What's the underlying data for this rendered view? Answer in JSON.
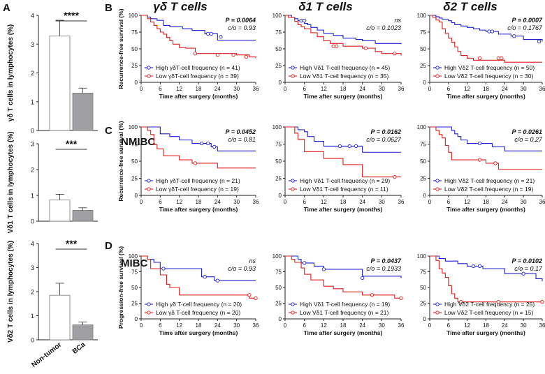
{
  "panel_letters": {
    "a": "A",
    "b": "B",
    "c": "C",
    "d": "D"
  },
  "column_titles": [
    "γδ T cells",
    "δ1 T cells",
    "δ2 T cells"
  ],
  "row_labels": {
    "c": "NMIBC",
    "d": "MIBC"
  },
  "colors": {
    "high": "#1f1fd6",
    "low": "#e01b1b",
    "bar_bca": "#a0a0a4",
    "bar_nontumor": "#ffffff",
    "axis": "#222222"
  },
  "chart_data": [
    {
      "type": "bar",
      "title": "",
      "ylabel": "γδ T cells in lymphocytes (%)",
      "ylim": [
        0,
        4
      ],
      "yticks": [
        0,
        1,
        2,
        3,
        4
      ],
      "categories": [
        "Non-tumor",
        "BCa"
      ],
      "values": [
        3.28,
        1.3
      ],
      "errors": [
        0.55,
        0.17
      ],
      "significance": "****"
    },
    {
      "type": "bar",
      "title": "",
      "ylabel": "Vδ1 T cells in lymphocytes (%)",
      "ylim": [
        0,
        3
      ],
      "yticks": [
        0,
        1,
        2,
        3
      ],
      "categories": [
        "Non-tumor",
        "BCa"
      ],
      "values": [
        0.82,
        0.42
      ],
      "errors": [
        0.22,
        0.1
      ],
      "significance": "***"
    },
    {
      "type": "bar",
      "title": "",
      "ylabel": "Vδ2 T cells in lymphocytes (%)",
      "ylim": [
        0,
        4
      ],
      "yticks": [
        0,
        1,
        2,
        3,
        4
      ],
      "categories": [
        "Non-tumor",
        "BCa"
      ],
      "values": [
        1.85,
        0.62
      ],
      "errors": [
        0.5,
        0.12
      ],
      "significance": "***"
    },
    {
      "type": "line",
      "panel": "B",
      "ylabel": "Recurrence-free survival (%)",
      "xlabel": "Time after surgery (months)",
      "xlim": [
        0,
        36
      ],
      "ylim": [
        0,
        100
      ],
      "xticks": [
        0,
        6,
        12,
        18,
        24,
        30,
        36
      ],
      "yticks": [
        0,
        25,
        50,
        75,
        100
      ],
      "stats": {
        "p": "P = 0.0064",
        "co": "c/o = 0.93",
        "p_bold": true
      },
      "series": [
        {
          "name": "High γδT-cell frequency (n = 41)",
          "key": "high",
          "x": [
            0,
            2,
            3,
            5,
            7,
            9,
            13,
            16,
            20,
            24,
            36
          ],
          "y": [
            100,
            97.5,
            95,
            92.5,
            85,
            83,
            80,
            77.5,
            72.5,
            63,
            63
          ],
          "censor_x": [
            21,
            22,
            25
          ],
          "censor_y": [
            72.5,
            72.5,
            68
          ]
        },
        {
          "name": "Low γδT-cell frequency (n = 39)",
          "key": "low",
          "x": [
            0,
            2,
            3,
            4,
            5,
            6,
            7,
            8,
            9,
            10,
            12,
            14,
            17,
            30,
            34,
            36
          ],
          "y": [
            100,
            95,
            90,
            85,
            80,
            75,
            72,
            67,
            62,
            57,
            52,
            51,
            43,
            41,
            38,
            36
          ],
          "censor_x": [
            17,
            24,
            29,
            33
          ],
          "censor_y": [
            43,
            41,
            41,
            38
          ]
        }
      ]
    },
    {
      "type": "line",
      "panel": "B",
      "ylabel": "",
      "xlabel": "Time after surgery (months)",
      "xlim": [
        0,
        36
      ],
      "ylim": [
        0,
        100
      ],
      "xticks": [
        0,
        6,
        12,
        18,
        24,
        30,
        36
      ],
      "yticks": [
        0,
        25,
        50,
        75,
        100
      ],
      "stats": {
        "p": "ns",
        "co": "c/o = 0.1023",
        "p_bold": false
      },
      "series": [
        {
          "name": "High Vδ1 T-cell frequency (n = 45)",
          "key": "high",
          "x": [
            0,
            2,
            3,
            4,
            6,
            7,
            8,
            10,
            12,
            15,
            18,
            22,
            24,
            28,
            36
          ],
          "y": [
            100,
            97,
            95,
            92,
            88,
            86,
            82,
            78,
            73,
            70,
            66,
            64,
            62,
            58,
            57
          ],
          "censor_x": [
            5,
            6
          ],
          "censor_y": [
            92,
            92
          ]
        },
        {
          "name": "Low Vδ1 T-cell frequency (n = 35)",
          "key": "low",
          "x": [
            0,
            1,
            3,
            4,
            5,
            6,
            8,
            10,
            12,
            14,
            18,
            24,
            28,
            30,
            36
          ],
          "y": [
            100,
            97,
            91,
            86,
            83,
            80,
            74,
            68,
            62,
            58,
            54,
            51,
            46,
            43,
            40
          ],
          "censor_x": [
            15,
            16,
            25,
            34
          ],
          "censor_y": [
            54,
            54,
            51,
            43
          ]
        }
      ]
    },
    {
      "type": "line",
      "panel": "B",
      "ylabel": "",
      "xlabel": "Time after surgery (months)",
      "xlim": [
        0,
        36
      ],
      "ylim": [
        0,
        100
      ],
      "xticks": [
        0,
        6,
        12,
        18,
        24,
        30,
        36
      ],
      "yticks": [
        0,
        25,
        50,
        75,
        100
      ],
      "stats": {
        "p": "P = 0.0007",
        "co": "c/o = 0.1767",
        "p_bold": true
      },
      "series": [
        {
          "name": "High Vδ2 T-cell frequency (n = 50)",
          "key": "high",
          "x": [
            0,
            2,
            3,
            4,
            6,
            7,
            8,
            10,
            12,
            14,
            16,
            18,
            22,
            26,
            30,
            36
          ],
          "y": [
            100,
            98,
            96,
            94,
            92,
            89,
            86,
            84,
            82,
            80,
            78,
            76,
            72,
            69,
            64,
            61
          ],
          "censor_x": [
            19,
            20,
            27,
            35
          ],
          "censor_y": [
            76,
            76,
            69,
            61
          ]
        },
        {
          "name": "Low Vδ2 T-cell frequency (n = 30)",
          "key": "low",
          "x": [
            0,
            1,
            2,
            3,
            4,
            5,
            6,
            7,
            8,
            9,
            10,
            12,
            14,
            24,
            36
          ],
          "y": [
            100,
            97,
            93,
            90,
            80,
            73,
            66,
            60,
            53,
            46,
            40,
            36,
            33,
            30,
            30
          ],
          "censor_x": [
            16,
            22,
            23
          ],
          "censor_y": [
            36,
            36,
            36
          ]
        }
      ]
    },
    {
      "type": "line",
      "panel": "C",
      "ylabel": "Recurrence-free survival (%)",
      "xlabel": "Time after surgery (months)",
      "xlim": [
        0,
        36
      ],
      "ylim": [
        0,
        100
      ],
      "xticks": [
        0,
        6,
        12,
        18,
        24,
        30,
        36
      ],
      "yticks": [
        0,
        25,
        50,
        75,
        100
      ],
      "stats": {
        "p": "P = 0.0452",
        "co": "c/o = 0.81",
        "p_bold": true
      },
      "series": [
        {
          "name": "High γδT-cell frequency (n = 21)",
          "key": "high",
          "x": [
            0,
            6,
            9,
            12,
            16,
            22,
            24,
            36
          ],
          "y": [
            100,
            90,
            86,
            81,
            76,
            71,
            65,
            65
          ],
          "censor_x": [
            19,
            21,
            23
          ],
          "censor_y": [
            76,
            76,
            71
          ]
        },
        {
          "name": "Low γδT-cell frequency (n = 19)",
          "key": "low",
          "x": [
            0,
            2,
            3,
            4,
            5,
            7,
            12,
            16,
            24,
            36
          ],
          "y": [
            100,
            95,
            89,
            74,
            68,
            58,
            52,
            47,
            40,
            40
          ],
          "censor_x": [
            17
          ],
          "censor_y": [
            47
          ]
        }
      ]
    },
    {
      "type": "line",
      "panel": "C",
      "ylabel": "",
      "xlabel": "Time after surgery (months)",
      "xlim": [
        0,
        36
      ],
      "ylim": [
        0,
        100
      ],
      "xticks": [
        0,
        6,
        12,
        18,
        24,
        30,
        36
      ],
      "yticks": [
        0,
        25,
        50,
        75,
        100
      ],
      "stats": {
        "p": "P = 0.0162",
        "co": "c/o = 0.0627",
        "p_bold": true
      },
      "series": [
        {
          "name": "High Vδ1 T-cell frequency (n = 29)",
          "key": "high",
          "x": [
            0,
            4,
            6,
            7,
            9,
            12,
            24,
            36
          ],
          "y": [
            100,
            96,
            93,
            86,
            79,
            72,
            63,
            63
          ],
          "censor_x": [
            17,
            20,
            22
          ],
          "censor_y": [
            72,
            72,
            72
          ]
        },
        {
          "name": "Low Vδ1 T-cell frequency (n = 11)",
          "key": "low",
          "x": [
            0,
            3,
            4,
            6,
            12,
            18,
            24,
            36
          ],
          "y": [
            100,
            91,
            82,
            64,
            54,
            45,
            27,
            27
          ],
          "censor_x": [
            34
          ],
          "censor_y": [
            27
          ]
        }
      ]
    },
    {
      "type": "line",
      "panel": "C",
      "ylabel": "",
      "xlabel": "Time after surgery (months)",
      "xlim": [
        0,
        36
      ],
      "ylim": [
        0,
        100
      ],
      "xticks": [
        0,
        6,
        12,
        18,
        24,
        30,
        36
      ],
      "yticks": [
        0,
        25,
        50,
        75,
        100
      ],
      "stats": {
        "p": "P = 0.0261",
        "co": "c/o = 0.27",
        "p_bold": true
      },
      "series": [
        {
          "name": "High Vδ2 T-cell frequency (n = 21)",
          "key": "high",
          "x": [
            0,
            7,
            8,
            9,
            10,
            12,
            20,
            24,
            36
          ],
          "y": [
            100,
            95,
            90,
            86,
            81,
            76,
            71,
            65,
            65
          ],
          "censor_x": [
            16
          ],
          "censor_y": [
            76
          ]
        },
        {
          "name": "Low Vδ2 T-cell frequency (n = 19)",
          "key": "low",
          "x": [
            0,
            2,
            3,
            4,
            5,
            6,
            7,
            18,
            22,
            36
          ],
          "y": [
            100,
            95,
            89,
            84,
            73,
            63,
            52,
            47,
            38,
            38
          ],
          "censor_x": [
            16,
            21
          ],
          "censor_y": [
            52,
            47
          ]
        }
      ]
    },
    {
      "type": "line",
      "panel": "D",
      "ylabel": "Progression-free survival (%)",
      "xlabel": "Time after surgery (months)",
      "xlim": [
        0,
        36
      ],
      "ylim": [
        0,
        100
      ],
      "xticks": [
        0,
        6,
        12,
        18,
        24,
        30,
        36
      ],
      "yticks": [
        0,
        25,
        50,
        75,
        100
      ],
      "stats": {
        "p": "ns",
        "co": "c/o = 0.93",
        "p_bold": false
      },
      "series": [
        {
          "name": "High γδ T-cell frequency (n = 20)",
          "key": "high",
          "x": [
            0,
            2,
            4,
            6,
            19,
            23,
            36
          ],
          "y": [
            100,
            95,
            90,
            80,
            67,
            61,
            61
          ],
          "censor_x": [
            7,
            20,
            24
          ],
          "censor_y": [
            80,
            67,
            61
          ]
        },
        {
          "name": "Low γδ T-cell frequency (n = 20)",
          "key": "low",
          "x": [
            0,
            2,
            3,
            6,
            8,
            9,
            12,
            34,
            36
          ],
          "y": [
            100,
            95,
            80,
            70,
            55,
            50,
            38,
            33,
            33
          ],
          "censor_x": [
            34,
            36
          ],
          "censor_y": [
            38,
            33
          ]
        }
      ]
    },
    {
      "type": "line",
      "panel": "D",
      "ylabel": "",
      "xlabel": "Time after surgery (months)",
      "xlim": [
        0,
        36
      ],
      "ylim": [
        0,
        100
      ],
      "xticks": [
        0,
        6,
        12,
        18,
        24,
        30,
        36
      ],
      "yticks": [
        0,
        25,
        50,
        75,
        100
      ],
      "stats": {
        "p": "P = 0.0437",
        "co": "c/o = 0.1933",
        "p_bold": true
      },
      "series": [
        {
          "name": "High Vδ1 T-cell frequency (n = 19)",
          "key": "high",
          "x": [
            0,
            4,
            5,
            9,
            12,
            24,
            36
          ],
          "y": [
            100,
            95,
            89,
            84,
            79,
            68,
            65
          ],
          "censor_x": [
            6,
            12,
            24
          ],
          "censor_y": [
            89,
            79,
            65
          ]
        },
        {
          "name": "Low Vδ1 T-cell frequency (n = 21)",
          "key": "low",
          "x": [
            0,
            2,
            3,
            5,
            6,
            8,
            12,
            15,
            18,
            24,
            34,
            36
          ],
          "y": [
            100,
            95,
            90,
            81,
            71,
            62,
            52,
            48,
            43,
            38,
            33,
            33
          ],
          "censor_x": [
            27,
            36
          ],
          "censor_y": [
            38,
            33
          ]
        }
      ]
    },
    {
      "type": "line",
      "panel": "D",
      "ylabel": "",
      "xlabel": "Time after surgery (months)",
      "xlim": [
        0,
        36
      ],
      "ylim": [
        0,
        100
      ],
      "xticks": [
        0,
        6,
        12,
        18,
        24,
        30,
        36
      ],
      "yticks": [
        0,
        25,
        50,
        75,
        100
      ],
      "stats": {
        "p": "P = 0.0102",
        "co": "c/o = 0.17",
        "p_bold": true
      },
      "series": [
        {
          "name": "High Vδ2 T-cell frequency (n = 25)",
          "key": "high",
          "x": [
            0,
            3,
            5,
            9,
            12,
            17,
            24,
            34,
            36
          ],
          "y": [
            100,
            96,
            92,
            88,
            84,
            80,
            72,
            64,
            60
          ],
          "censor_x": [
            14,
            16,
            30
          ],
          "censor_y": [
            84,
            84,
            72
          ]
        },
        {
          "name": "Low Vδ2 T-cell frequency (n = 15)",
          "key": "low",
          "x": [
            0,
            2,
            3,
            4,
            5,
            6,
            7,
            8,
            9,
            36
          ],
          "y": [
            100,
            93,
            80,
            73,
            66,
            53,
            40,
            33,
            27,
            27
          ],
          "censor_x": [
            10,
            22,
            36
          ],
          "censor_y": [
            27,
            27,
            27
          ]
        }
      ]
    }
  ]
}
